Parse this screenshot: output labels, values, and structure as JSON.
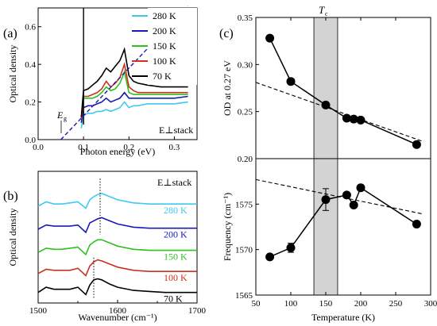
{
  "chart_data": [
    {
      "panel": "(a)",
      "type": "line",
      "xlabel": "Photon energy (eV)",
      "ylabel": "Optical density",
      "xlim": [
        0.0,
        0.35
      ],
      "ylim": [
        0.0,
        0.7
      ],
      "xticks": [
        "0.0",
        "0.1",
        "0.2",
        "0.3"
      ],
      "yticks": [
        "0.0",
        "0.2",
        "0.4",
        "0.6"
      ],
      "annotations": {
        "gap": "E",
        "gap_sub": "g",
        "config": "E⊥stack"
      },
      "legend_position": "top-right",
      "x": [
        0.095,
        0.1,
        0.11,
        0.12,
        0.13,
        0.14,
        0.15,
        0.16,
        0.17,
        0.18,
        0.19,
        0.2,
        0.21,
        0.22,
        0.24,
        0.27,
        0.3,
        0.33
      ],
      "series": [
        {
          "name": "280 K",
          "color": "#3fc8f0",
          "values": [
            0.06,
            0.13,
            0.14,
            0.14,
            0.15,
            0.15,
            0.16,
            0.15,
            0.16,
            0.17,
            0.2,
            0.17,
            0.18,
            0.18,
            0.19,
            0.19,
            0.19,
            0.2
          ]
        },
        {
          "name": "200 K",
          "color": "#1a1ab5",
          "values": [
            0.09,
            0.17,
            0.18,
            0.18,
            0.19,
            0.2,
            0.22,
            0.2,
            0.21,
            0.22,
            0.25,
            0.22,
            0.22,
            0.22,
            0.22,
            0.22,
            0.22,
            0.23
          ]
        },
        {
          "name": "150 K",
          "color": "#2fbf1f",
          "values": [
            0.11,
            0.22,
            0.22,
            0.22,
            0.23,
            0.25,
            0.28,
            0.26,
            0.27,
            0.3,
            0.36,
            0.25,
            0.24,
            0.24,
            0.24,
            0.24,
            0.24,
            0.24
          ]
        },
        {
          "name": "100 K",
          "color": "#c8321e",
          "values": [
            0.11,
            0.23,
            0.23,
            0.24,
            0.25,
            0.27,
            0.31,
            0.28,
            0.3,
            0.33,
            0.4,
            0.28,
            0.26,
            0.25,
            0.25,
            0.25,
            0.25,
            0.25
          ]
        },
        {
          "name": "70 K",
          "color": "#000000",
          "values": [
            0.12,
            0.26,
            0.27,
            0.29,
            0.31,
            0.34,
            0.38,
            0.36,
            0.39,
            0.42,
            0.48,
            0.34,
            0.31,
            0.3,
            0.29,
            0.28,
            0.28,
            0.28
          ]
        }
      ],
      "fit_line": {
        "x": [
          0.05,
          0.33
        ],
        "y": [
          0.0,
          0.71
        ],
        "color": "#1a1ab5"
      }
    },
    {
      "panel": "(b)",
      "type": "line",
      "xlabel": "Wavenumber (cm⁻¹)",
      "ylabel": "Optical density",
      "xlim": [
        1500,
        1700
      ],
      "xticks": [
        "1500",
        "1600",
        "1700"
      ],
      "annotations": {
        "config": "E⊥stack"
      },
      "peak_markers": [
        1578,
        1570
      ],
      "x": [
        1500,
        1510,
        1520,
        1530,
        1540,
        1550,
        1560,
        1565,
        1570,
        1575,
        1580,
        1590,
        1600,
        1620,
        1640,
        1660,
        1680,
        1700
      ],
      "series": [
        {
          "name": "280 K",
          "color": "#3fc8f0",
          "values": [
            0.82,
            0.86,
            0.84,
            0.84,
            0.85,
            0.86,
            0.8,
            0.88,
            0.91,
            0.93,
            0.94,
            0.91,
            0.88,
            0.85,
            0.84,
            0.84,
            0.84,
            0.84
          ]
        },
        {
          "name": "200 K",
          "color": "#1a1ab5",
          "values": [
            0.6,
            0.64,
            0.63,
            0.63,
            0.63,
            0.64,
            0.57,
            0.66,
            0.68,
            0.7,
            0.71,
            0.68,
            0.65,
            0.62,
            0.61,
            0.61,
            0.61,
            0.61
          ]
        },
        {
          "name": "150 K",
          "color": "#2fbf1f",
          "values": [
            0.38,
            0.42,
            0.41,
            0.41,
            0.42,
            0.43,
            0.36,
            0.45,
            0.48,
            0.5,
            0.5,
            0.47,
            0.44,
            0.41,
            0.4,
            0.4,
            0.4,
            0.4
          ]
        },
        {
          "name": "100 K",
          "color": "#c8321e",
          "values": [
            0.18,
            0.22,
            0.21,
            0.21,
            0.21,
            0.23,
            0.16,
            0.25,
            0.29,
            0.31,
            0.3,
            0.27,
            0.24,
            0.21,
            0.2,
            0.2,
            0.2,
            0.2
          ]
        },
        {
          "name": "70 K",
          "color": "#000000",
          "values": [
            0.0,
            0.05,
            0.03,
            0.03,
            0.03,
            0.05,
            -0.02,
            0.07,
            0.12,
            0.13,
            0.12,
            0.08,
            0.05,
            0.02,
            0.01,
            0.0,
            0.0,
            0.0
          ]
        }
      ]
    },
    {
      "panel": "(c) upper",
      "type": "scatter",
      "xlabel": "Temperature (K)",
      "ylabel": "OD at 0.27 eV",
      "xlim": [
        50,
        300
      ],
      "ylim": [
        0.2,
        0.35
      ],
      "yticks": [
        "0.20",
        "0.25",
        "0.30",
        "0.35"
      ],
      "top_label": "T",
      "top_label_sub": "c",
      "shaded_band": [
        133,
        167
      ],
      "x": [
        70,
        100,
        150,
        180,
        190,
        200,
        280
      ],
      "y": [
        0.328,
        0.282,
        0.257,
        0.243,
        0.242,
        0.241,
        0.215
      ],
      "dashed_line": {
        "x": [
          50,
          290
        ],
        "y": [
          0.281,
          0.218
        ]
      }
    },
    {
      "panel": "(c) lower",
      "type": "scatter",
      "xlabel": "Temperature (K)",
      "ylabel": "Frequency (cm⁻¹)",
      "xlim": [
        50,
        300
      ],
      "ylim": [
        1565,
        1580
      ],
      "xticks": [
        "50",
        "100",
        "150",
        "200",
        "250",
        "300"
      ],
      "yticks": [
        "1565",
        "1570",
        "1575"
      ],
      "x": [
        70,
        100,
        150,
        180,
        190,
        200,
        280
      ],
      "y": [
        1569.2,
        1570.2,
        1575.5,
        1576.0,
        1574.9,
        1576.8,
        1572.8
      ],
      "error": [
        0.3,
        0.5,
        1.2,
        0.3,
        0.3,
        0.3,
        0.3
      ],
      "dashed_line": {
        "x": [
          50,
          290
        ],
        "y": [
          1577.7,
          1573.9
        ]
      }
    }
  ],
  "panel_labels": [
    "(a)",
    "(b)",
    "(c)"
  ]
}
